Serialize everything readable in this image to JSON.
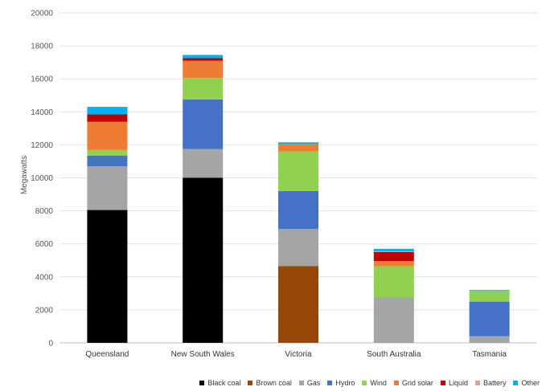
{
  "chart_data": {
    "type": "bar",
    "stacked": true,
    "ylabel": "Megawatts",
    "xlabel": "",
    "title": "",
    "ylim": [
      0,
      20000
    ],
    "yticks": [
      0,
      2000,
      4000,
      6000,
      8000,
      10000,
      12000,
      14000,
      16000,
      18000,
      20000
    ],
    "grid": true,
    "legend_position": "bottom-right",
    "categories": [
      "Queensland",
      "New South Wales",
      "Victoria",
      "South Australia",
      "Tasmania"
    ],
    "series": [
      {
        "name": "Black coal",
        "color": "#000000",
        "values": [
          8050,
          10000,
          0,
          0,
          0
        ]
      },
      {
        "name": "Brown coal",
        "color": "#974806",
        "values": [
          0,
          0,
          4650,
          0,
          0
        ]
      },
      {
        "name": "Gas",
        "color": "#a5a5a5",
        "values": [
          2650,
          1750,
          2250,
          2750,
          400
        ]
      },
      {
        "name": "Hydro",
        "color": "#4472c4",
        "values": [
          650,
          3000,
          2300,
          0,
          2100
        ]
      },
      {
        "name": "Wind",
        "color": "#92d050",
        "values": [
          350,
          1300,
          2400,
          1900,
          650
        ]
      },
      {
        "name": "Grid solar",
        "color": "#ed7d31",
        "values": [
          1700,
          1050,
          450,
          300,
          0
        ]
      },
      {
        "name": "Liquid",
        "color": "#c00000",
        "values": [
          450,
          150,
          0,
          550,
          0
        ]
      },
      {
        "name": "Battery",
        "color": "#e6a0a0",
        "values": [
          0,
          0,
          0,
          50,
          0
        ]
      },
      {
        "name": "Other",
        "color": "#00b0f0",
        "values": [
          450,
          200,
          100,
          150,
          50
        ]
      }
    ]
  }
}
